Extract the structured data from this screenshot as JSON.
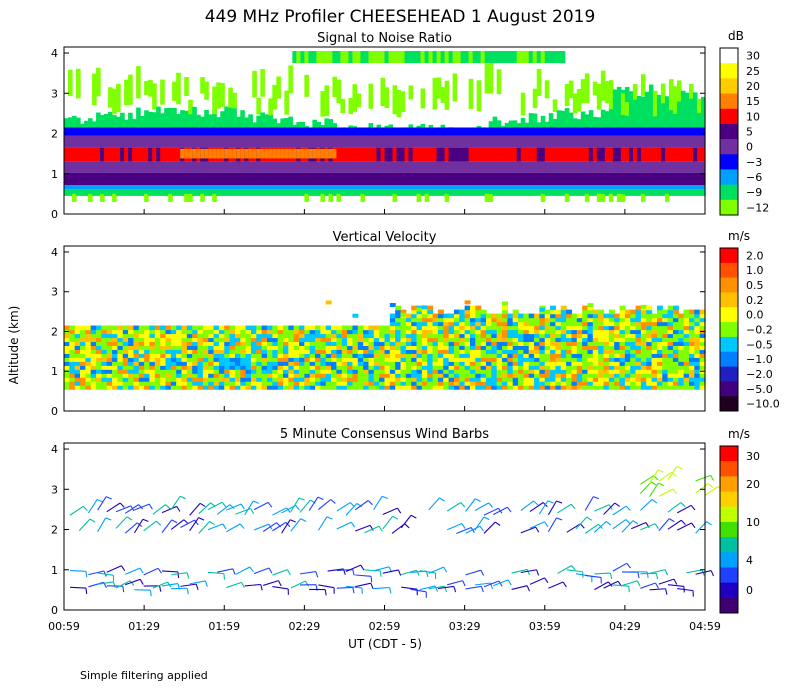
{
  "title": "449 MHz Profiler CHEESEHEAD   1 August 2019",
  "ylabel": "Altitude (km)",
  "xlabel": "UT  (CDT - 5)",
  "footnote": "Simple filtering applied",
  "x_ticks": [
    "00:59",
    "01:29",
    "01:59",
    "02:29",
    "02:59",
    "03:29",
    "03:59",
    "04:29",
    "04:59"
  ],
  "y_ticks": [
    "0",
    "1",
    "2",
    "3",
    "4"
  ],
  "panels": [
    {
      "id": "snr",
      "title": "Signal to Noise Ratio",
      "unit": "dB",
      "colorbar": {
        "colors": [
          "#ffffff",
          "#ffff00",
          "#ffcc00",
          "#ff8000",
          "#ff0000",
          "#4b0082",
          "#7030a0",
          "#0000ff",
          "#00a0ff",
          "#00e060",
          "#80ff00"
        ],
        "labels": [
          "30",
          "25",
          "20",
          "15",
          "10",
          "5",
          "0",
          "−3",
          "−6",
          "−9",
          "−12"
        ]
      }
    },
    {
      "id": "vv",
      "title": "Vertical Velocity",
      "unit": "m/s",
      "colorbar": {
        "colors": [
          "#ff0000",
          "#ff5000",
          "#ff9000",
          "#ffc000",
          "#ffff00",
          "#80ff00",
          "#00c8ff",
          "#0080ff",
          "#2020c0",
          "#400080",
          "#200020"
        ],
        "labels": [
          "2.0",
          "1.0",
          "0.5",
          "0.2",
          "0.0",
          "−0.2",
          "−0.5",
          "−1.0",
          "−2.0",
          "−5.0",
          "−10.0"
        ]
      }
    },
    {
      "id": "wind",
      "title": "5 Minute Consensus Wind Barbs",
      "unit": "m/s",
      "colorbar": {
        "colors": [
          "#ff0000",
          "#ff5000",
          "#ffa000",
          "#ffd000",
          "#c0ff00",
          "#40e000",
          "#00c0a0",
          "#00a0ff",
          "#2040ff",
          "#2000c0",
          "#400070"
        ],
        "labels": [
          "30",
          "20",
          "10",
          "4",
          "0"
        ]
      }
    }
  ],
  "chart_data": [
    {
      "type": "heatmap",
      "title": "Signal to Noise Ratio",
      "units": "dB",
      "x_range": [
        "00:59",
        "04:59"
      ],
      "ylim": [
        0,
        4
      ],
      "ylabel": "Altitude (km)",
      "description_layers": [
        {
          "altitude_km": [
            0.5,
            0.7
          ],
          "snr_db": -6
        },
        {
          "altitude_km": [
            0.7,
            1.0
          ],
          "snr_db": 0
        },
        {
          "altitude_km": [
            1.0,
            1.3
          ],
          "snr_db": 5
        },
        {
          "altitude_km": [
            1.3,
            1.7
          ],
          "snr_db": 12
        },
        {
          "altitude_km": [
            1.7,
            2.0
          ],
          "snr_db": 0
        },
        {
          "altitude_km": [
            2.0,
            2.3
          ],
          "snr_db": -6
        },
        {
          "altitude_km": [
            3.6,
            4.0
          ],
          "snr_db": -9
        }
      ]
    },
    {
      "type": "heatmap",
      "title": "Vertical Velocity",
      "units": "m/s",
      "x_range": [
        "00:59",
        "04:59"
      ],
      "ylim": [
        0,
        4
      ],
      "ylabel": "Altitude (km)",
      "value_range_m_s": [
        -1.0,
        0.5
      ]
    },
    {
      "type": "scatter",
      "title": "5 Minute Consensus Wind Barbs",
      "units": "m/s",
      "x_range": [
        "00:59",
        "04:59"
      ],
      "ylim": [
        0,
        4
      ],
      "ylabel": "Altitude (km)",
      "speed_range_m_s": [
        0,
        15
      ]
    }
  ]
}
